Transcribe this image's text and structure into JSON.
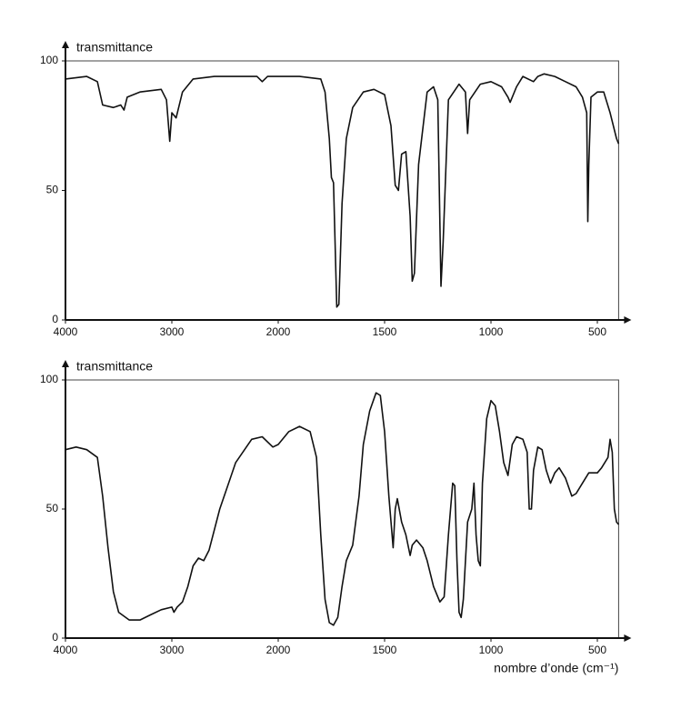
{
  "chart_data": [
    {
      "type": "line",
      "ylabel": "transmittance",
      "color": "#111111",
      "xlim": [
        4000,
        400
      ],
      "ylim": [
        0,
        100
      ],
      "xticks": [
        4000,
        3000,
        2000,
        1500,
        1000,
        500
      ],
      "yticks": [
        0,
        50,
        100
      ],
      "x": [
        4000,
        3800,
        3700,
        3650,
        3550,
        3480,
        3450,
        3420,
        3300,
        3100,
        3050,
        3020,
        3000,
        2960,
        2900,
        2800,
        2600,
        2400,
        2200,
        2150,
        2100,
        1900,
        1800,
        1780,
        1760,
        1750,
        1740,
        1725,
        1715,
        1700,
        1680,
        1650,
        1600,
        1550,
        1500,
        1470,
        1450,
        1435,
        1420,
        1400,
        1380,
        1370,
        1360,
        1340,
        1300,
        1270,
        1250,
        1235,
        1225,
        1200,
        1150,
        1120,
        1110,
        1100,
        1050,
        1000,
        950,
        920,
        910,
        880,
        850,
        800,
        780,
        750,
        700,
        650,
        600,
        570,
        550,
        545,
        540,
        530,
        500,
        470,
        440,
        410,
        400
      ],
      "values": [
        93,
        94,
        92,
        83,
        82,
        83,
        81,
        86,
        88,
        89,
        85,
        69,
        80,
        78,
        88,
        93,
        94,
        94,
        94,
        92,
        94,
        94,
        93,
        88,
        70,
        55,
        53,
        5,
        6,
        45,
        70,
        82,
        88,
        89,
        87,
        75,
        52,
        50,
        64,
        65,
        40,
        15,
        18,
        60,
        88,
        90,
        85,
        13,
        30,
        85,
        91,
        88,
        72,
        85,
        91,
        92,
        90,
        86,
        84,
        90,
        94,
        92,
        94,
        95,
        94,
        92,
        90,
        86,
        80,
        38,
        60,
        86,
        88,
        88,
        80,
        70,
        68
      ]
    },
    {
      "type": "line",
      "ylabel": "transmittance",
      "xlabel": "nombre d’onde (cm⁻¹)",
      "color": "#111111",
      "xlim": [
        4000,
        400
      ],
      "ylim": [
        0,
        100
      ],
      "xticks": [
        4000,
        3000,
        2000,
        1500,
        1000,
        500
      ],
      "yticks": [
        0,
        50,
        100
      ],
      "x": [
        4000,
        3900,
        3800,
        3700,
        3650,
        3600,
        3550,
        3500,
        3400,
        3300,
        3200,
        3100,
        3000,
        2980,
        2950,
        2900,
        2850,
        2800,
        2750,
        2700,
        2650,
        2550,
        2400,
        2250,
        2150,
        2050,
        2000,
        1950,
        1900,
        1850,
        1820,
        1800,
        1780,
        1760,
        1740,
        1720,
        1700,
        1680,
        1650,
        1620,
        1600,
        1570,
        1540,
        1520,
        1500,
        1480,
        1460,
        1450,
        1440,
        1420,
        1400,
        1380,
        1370,
        1350,
        1320,
        1300,
        1270,
        1240,
        1220,
        1200,
        1180,
        1170,
        1160,
        1150,
        1140,
        1130,
        1110,
        1090,
        1080,
        1070,
        1060,
        1050,
        1040,
        1020,
        1000,
        980,
        960,
        940,
        920,
        900,
        880,
        850,
        830,
        820,
        810,
        800,
        780,
        760,
        740,
        720,
        700,
        680,
        650,
        620,
        600,
        570,
        540,
        500,
        480,
        450,
        440,
        430,
        420,
        410,
        400
      ],
      "values": [
        73,
        74,
        73,
        70,
        55,
        35,
        18,
        10,
        7,
        7,
        9,
        11,
        12,
        10,
        12,
        14,
        20,
        28,
        31,
        30,
        34,
        50,
        68,
        77,
        78,
        74,
        75,
        80,
        82,
        80,
        70,
        40,
        15,
        6,
        5,
        8,
        20,
        30,
        36,
        55,
        75,
        88,
        95,
        94,
        80,
        55,
        35,
        50,
        54,
        45,
        40,
        32,
        36,
        38,
        35,
        30,
        20,
        14,
        16,
        40,
        60,
        59,
        30,
        10,
        8,
        15,
        45,
        50,
        60,
        40,
        30,
        28,
        60,
        85,
        92,
        90,
        80,
        68,
        63,
        75,
        78,
        77,
        72,
        50,
        50,
        65,
        74,
        73,
        65,
        60,
        64,
        66,
        62,
        55,
        56,
        60,
        64,
        64,
        66,
        70,
        77,
        72,
        50,
        45,
        44
      ]
    }
  ]
}
